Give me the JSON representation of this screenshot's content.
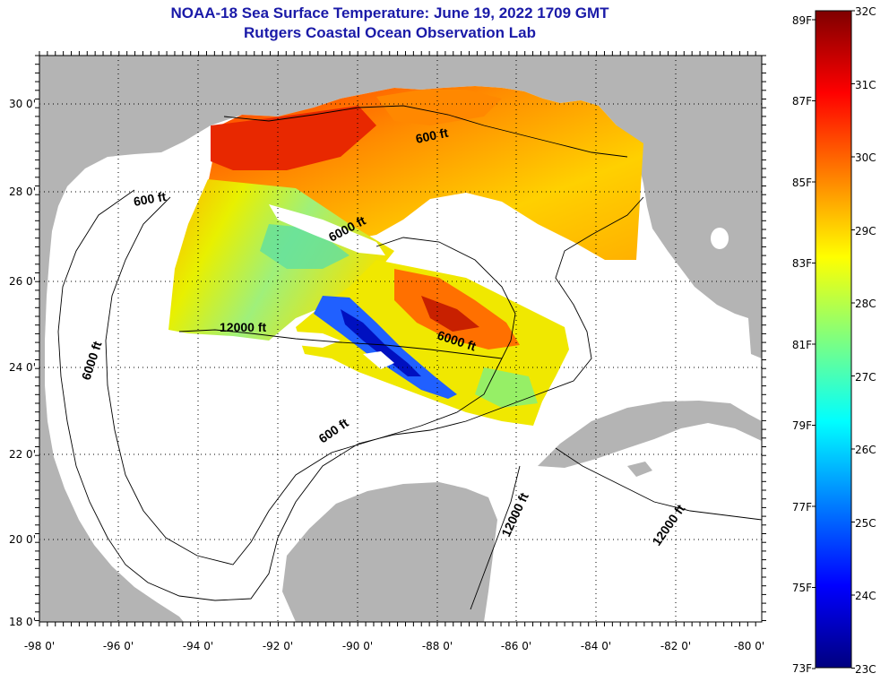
{
  "header": {
    "title": "NOAA-18 Sea Surface Temperature:  June 19, 2022 1709 GMT",
    "subtitle": "Rutgers Coastal Ocean Observation Lab"
  },
  "map": {
    "lat_labels": [
      "30 0'",
      "28 0'",
      "26 0'",
      "24 0'",
      "22 0'",
      "20 0'",
      "18 0'"
    ],
    "lon_labels": [
      "-98 0'",
      "-96 0'",
      "-94 0'",
      "-92 0'",
      "-90 0'",
      "-88 0'",
      "-86 0'",
      "-84 0'",
      "-82 0'",
      "-80 0'"
    ],
    "contour_labels": [
      {
        "text": "600 ft",
        "key": "c1"
      },
      {
        "text": "600 ft",
        "key": "c2"
      },
      {
        "text": "600 ft",
        "key": "c3"
      },
      {
        "text": "6000 ft",
        "key": "c4"
      },
      {
        "text": "6000 ft",
        "key": "c5"
      },
      {
        "text": "6000 ft",
        "key": "c6"
      },
      {
        "text": "12000 ft",
        "key": "c7"
      },
      {
        "text": "12000 ft",
        "key": "c8"
      },
      {
        "text": "12000 ft",
        "key": "c9"
      }
    ]
  },
  "colorbar": {
    "fahrenheit": [
      "89F",
      "87F",
      "85F",
      "83F",
      "81F",
      "79F",
      "77F",
      "75F",
      "73F"
    ],
    "celsius": [
      "32C",
      "31C",
      "30C",
      "29C",
      "28C",
      "27C",
      "26C",
      "25C",
      "24C",
      "23C"
    ],
    "min_c": 23,
    "max_c": 32,
    "colors": [
      "#00007f",
      "#0000ff",
      "#007fff",
      "#00ffff",
      "#7fff7f",
      "#ffff00",
      "#ff7f00",
      "#ff0000",
      "#7f0000"
    ]
  }
}
